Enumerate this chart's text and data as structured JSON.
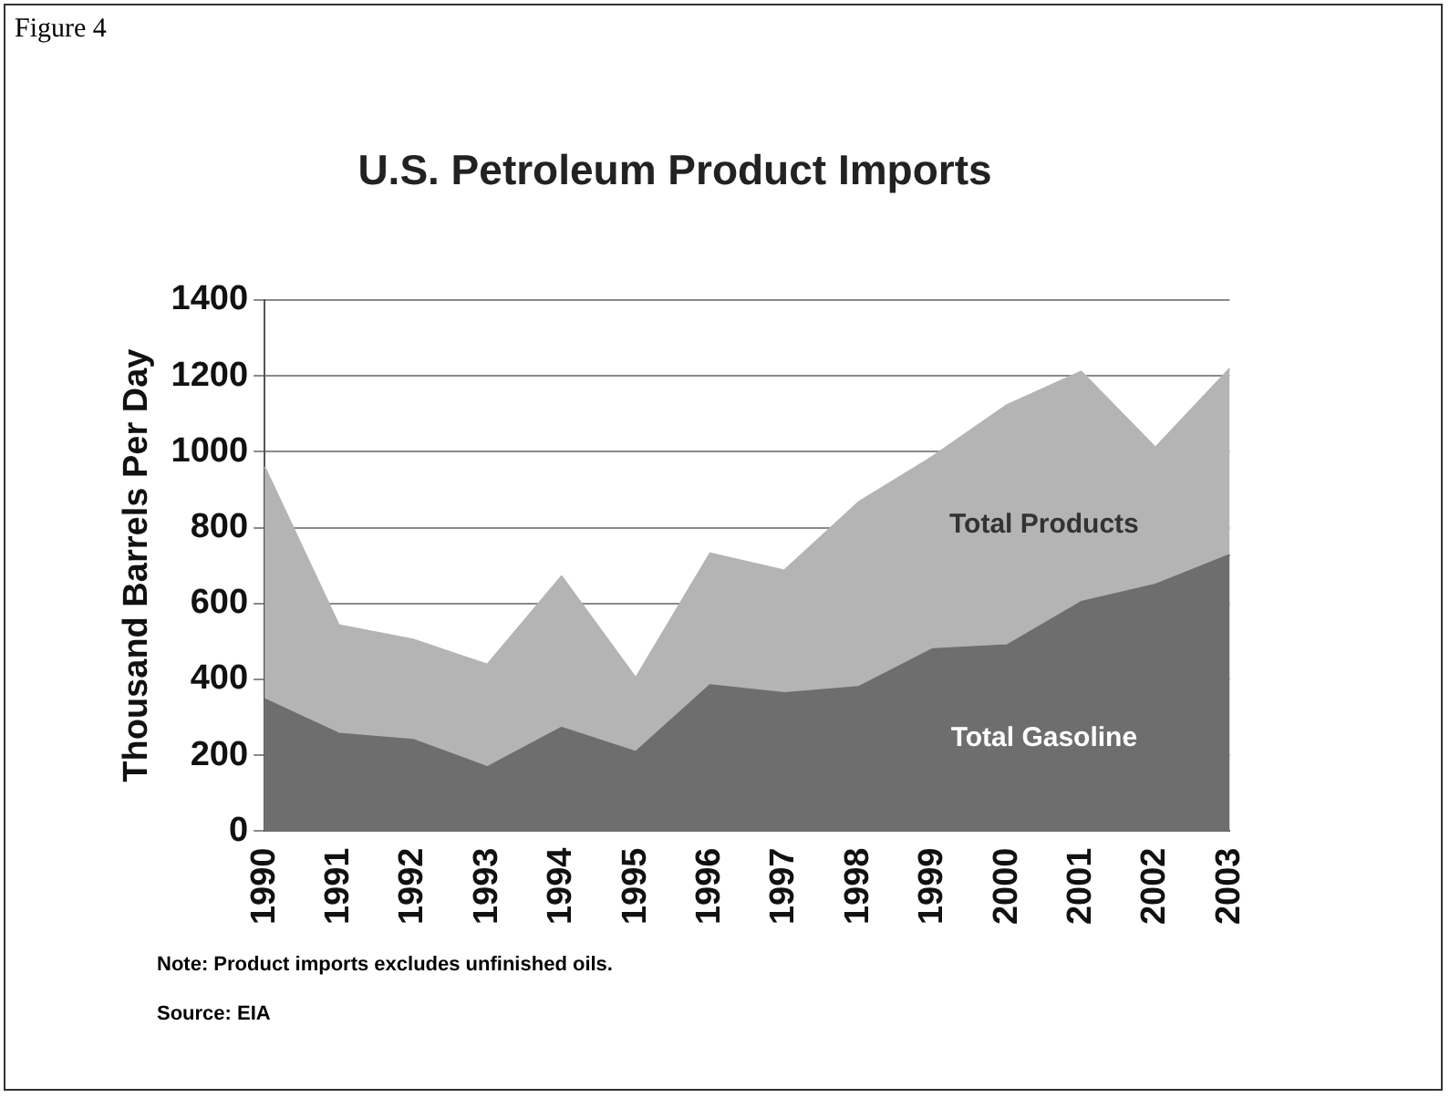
{
  "chart_data": {
    "type": "area",
    "title": "U.S. Petroleum Product  Imports",
    "ylabel": "Thousand Barrels Per Day",
    "categories": [
      "1990",
      "1991",
      "1992",
      "1993",
      "1994",
      "1995",
      "1996",
      "1997",
      "1998",
      "1999",
      "2000",
      "2001",
      "2002",
      "2003"
    ],
    "series": [
      {
        "name": "Total Products",
        "color": "#b4b4b4",
        "values": [
          960,
          543,
          505,
          439,
          672,
          404,
          732,
          687,
          867,
          987,
          1123,
          1211,
          1011,
          1219
        ]
      },
      {
        "name": "Total Gasoline",
        "color": "#6e6e6e",
        "values": [
          348,
          257,
          241,
          169,
          273,
          209,
          385,
          364,
          380,
          480,
          490,
          604,
          650,
          728
        ]
      }
    ],
    "ylim": [
      0,
      1400
    ],
    "yticks": [
      0,
      200,
      400,
      600,
      800,
      1000,
      1200,
      1400
    ],
    "grid": "y",
    "legend": false,
    "annotations": [
      "Figure 4",
      "Note: Product imports excludes unfinished oils.",
      "Source: EIA"
    ]
  }
}
